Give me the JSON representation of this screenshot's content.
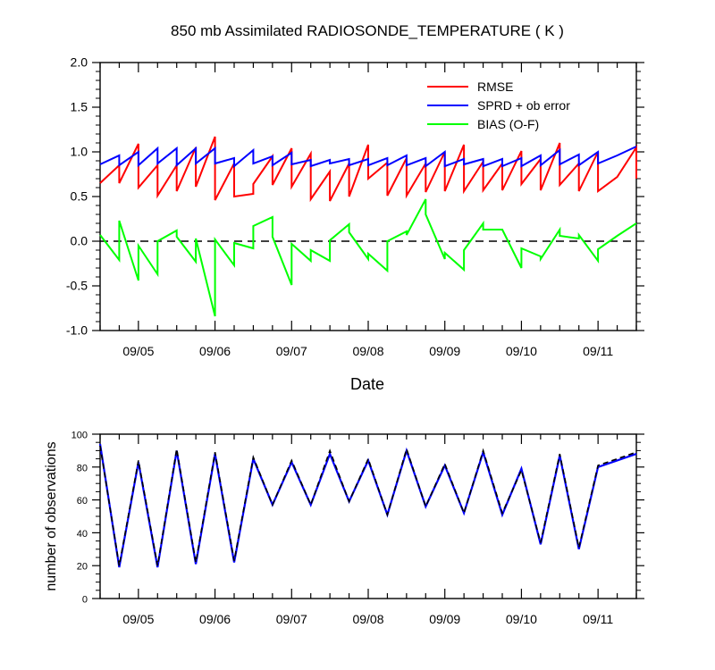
{
  "chart_data": [
    {
      "type": "line",
      "title": "850 mb Assimilated RADIOSONDE_TEMPERATURE ( K )",
      "xlabel": "Date",
      "ylabel": "",
      "xlim": [
        "09/04 12Z",
        "09/11 18Z"
      ],
      "ylim": [
        -1.0,
        2.0
      ],
      "y_ticks": [
        "-1.0",
        "-0.5",
        "0.0",
        "0.5",
        "1.0",
        "1.5",
        "2.0"
      ],
      "x_ticks": [
        "09/05",
        "09/06",
        "09/07",
        "09/08",
        "09/09",
        "09/10",
        "09/11"
      ],
      "zero_line": "dashed",
      "legend_position": "top-right",
      "series": [
        {
          "name": "RMSE",
          "color": "#ff0000",
          "points": [
            [
              0,
              0.65
            ],
            [
              1,
              0.85
            ],
            [
              1,
              0.65
            ],
            [
              2,
              1.09
            ],
            [
              2,
              0.6
            ],
            [
              3,
              0.85
            ],
            [
              3,
              0.51
            ],
            [
              4,
              0.85
            ],
            [
              4,
              0.56
            ],
            [
              5,
              1.05
            ],
            [
              5,
              0.61
            ],
            [
              6,
              1.17
            ],
            [
              6,
              0.46
            ],
            [
              7,
              0.87
            ],
            [
              7,
              0.5
            ],
            [
              8,
              0.53
            ],
            [
              8,
              0.64
            ],
            [
              9,
              0.95
            ],
            [
              9,
              0.63
            ],
            [
              10,
              1.04
            ],
            [
              10,
              0.61
            ],
            [
              11,
              0.98
            ],
            [
              11,
              0.47
            ],
            [
              12,
              0.78
            ],
            [
              12,
              0.45
            ],
            [
              13,
              0.87
            ],
            [
              13,
              0.5
            ],
            [
              14,
              1.08
            ],
            [
              14,
              0.7
            ],
            [
              15,
              0.88
            ],
            [
              15,
              0.51
            ],
            [
              16,
              0.93
            ],
            [
              16,
              0.51
            ],
            [
              17,
              0.87
            ],
            [
              17,
              0.55
            ],
            [
              18,
              1.0
            ],
            [
              18,
              0.56
            ],
            [
              19,
              1.08
            ],
            [
              19,
              0.56
            ],
            [
              20,
              0.89
            ],
            [
              20,
              0.57
            ],
            [
              21,
              0.87
            ],
            [
              21,
              0.57
            ],
            [
              22,
              1.01
            ],
            [
              22,
              0.64
            ],
            [
              23,
              0.92
            ],
            [
              23,
              0.57
            ],
            [
              24,
              1.1
            ],
            [
              24,
              0.63
            ],
            [
              25,
              0.87
            ],
            [
              25,
              0.56
            ],
            [
              26,
              1.0
            ],
            [
              26,
              0.56
            ],
            [
              27,
              0.72
            ],
            [
              28,
              1.05
            ],
            [
              28,
              0.7
            ]
          ]
        },
        {
          "name": "SPRD + ob error",
          "color": "#0000ff",
          "points": [
            [
              0,
              0.86
            ],
            [
              1,
              0.96
            ],
            [
              1,
              0.85
            ],
            [
              2,
              1.0
            ],
            [
              2,
              0.85
            ],
            [
              3,
              1.04
            ],
            [
              3,
              0.87
            ],
            [
              4,
              1.04
            ],
            [
              4,
              0.85
            ],
            [
              5,
              1.04
            ],
            [
              5,
              0.87
            ],
            [
              6,
              1.04
            ],
            [
              6,
              0.87
            ],
            [
              7,
              0.93
            ],
            [
              7,
              0.84
            ],
            [
              8,
              1.02
            ],
            [
              8,
              0.87
            ],
            [
              9,
              0.95
            ],
            [
              9,
              0.85
            ],
            [
              10,
              0.99
            ],
            [
              10,
              0.86
            ],
            [
              11,
              0.91
            ],
            [
              11,
              0.84
            ],
            [
              12,
              0.91
            ],
            [
              12,
              0.87
            ],
            [
              13,
              0.92
            ],
            [
              13,
              0.85
            ],
            [
              14,
              0.92
            ],
            [
              14,
              0.85
            ],
            [
              15,
              0.93
            ],
            [
              15,
              0.85
            ],
            [
              16,
              0.96
            ],
            [
              16,
              0.85
            ],
            [
              17,
              0.93
            ],
            [
              17,
              0.84
            ],
            [
              18,
              1.0
            ],
            [
              18,
              0.84
            ],
            [
              19,
              0.92
            ],
            [
              19,
              0.86
            ],
            [
              20,
              0.92
            ],
            [
              20,
              0.84
            ],
            [
              21,
              0.92
            ],
            [
              21,
              0.84
            ],
            [
              22,
              0.93
            ],
            [
              22,
              0.84
            ],
            [
              23,
              0.96
            ],
            [
              23,
              0.85
            ],
            [
              24,
              1.02
            ],
            [
              24,
              0.86
            ],
            [
              25,
              0.97
            ],
            [
              25,
              0.85
            ],
            [
              26,
              1.0
            ],
            [
              26,
              0.87
            ],
            [
              27,
              0.96
            ],
            [
              28,
              1.06
            ],
            [
              28,
              1.06
            ]
          ]
        },
        {
          "name": "BIAS (O-F)",
          "color": "#00ff00",
          "points": [
            [
              0,
              0.07
            ],
            [
              1,
              -0.21
            ],
            [
              1,
              0.23
            ],
            [
              2,
              -0.44
            ],
            [
              2,
              -0.05
            ],
            [
              3,
              -0.37
            ],
            [
              3,
              0.0
            ],
            [
              4,
              0.12
            ],
            [
              4,
              0.05
            ],
            [
              5,
              -0.23
            ],
            [
              5,
              0.03
            ],
            [
              6,
              -0.84
            ],
            [
              6,
              0.02
            ],
            [
              7,
              -0.27
            ],
            [
              7,
              -0.02
            ],
            [
              8,
              -0.08
            ],
            [
              8,
              0.17
            ],
            [
              9,
              0.27
            ],
            [
              9,
              0.05
            ],
            [
              10,
              -0.49
            ],
            [
              10,
              -0.03
            ],
            [
              11,
              -0.22
            ],
            [
              11,
              -0.1
            ],
            [
              12,
              -0.22
            ],
            [
              12,
              0.01
            ],
            [
              13,
              0.19
            ],
            [
              13,
              0.1
            ],
            [
              14,
              -0.2
            ],
            [
              14,
              -0.14
            ],
            [
              15,
              -0.33
            ],
            [
              15,
              0.0
            ],
            [
              16,
              0.11
            ],
            [
              16,
              0.07
            ],
            [
              17,
              0.47
            ],
            [
              17,
              0.3
            ],
            [
              18,
              -0.2
            ],
            [
              18,
              -0.13
            ],
            [
              19,
              -0.32
            ],
            [
              19,
              -0.1
            ],
            [
              20,
              0.2
            ],
            [
              20,
              0.13
            ],
            [
              21,
              0.13
            ],
            [
              21,
              0.13
            ],
            [
              22,
              -0.3
            ],
            [
              22,
              -0.08
            ],
            [
              23,
              -0.17
            ],
            [
              23,
              -0.2
            ],
            [
              24,
              0.13
            ],
            [
              24,
              0.06
            ],
            [
              25,
              0.03
            ],
            [
              25,
              0.07
            ],
            [
              26,
              -0.22
            ],
            [
              26,
              -0.09
            ],
            [
              27,
              0.06
            ],
            [
              28,
              0.2
            ],
            [
              28,
              0.2
            ]
          ]
        }
      ]
    },
    {
      "type": "line",
      "title": "",
      "xlabel": "",
      "ylabel": "number of observations",
      "xlim": [
        "09/04 12Z",
        "09/11 18Z"
      ],
      "ylim": [
        0,
        100
      ],
      "y_ticks": [
        "0",
        "20",
        "40",
        "60",
        "80",
        "100"
      ],
      "x_ticks": [
        "09/05",
        "09/06",
        "09/07",
        "09/08",
        "09/09",
        "09/10",
        "09/11"
      ],
      "series": [
        {
          "name": "",
          "color": "#0000ff",
          "style": "solid",
          "x": [
            0,
            1,
            2,
            3,
            4,
            5,
            6,
            7,
            8,
            9,
            10,
            11,
            12,
            13,
            14,
            15,
            16,
            17,
            18,
            19,
            20,
            21,
            22,
            23,
            24,
            25,
            26,
            27,
            28
          ],
          "values": [
            94,
            19,
            83,
            19,
            90,
            21,
            88,
            22,
            85,
            57,
            83,
            57,
            88,
            59,
            84,
            51,
            90,
            56,
            81,
            52,
            89,
            51,
            79,
            33,
            87,
            30,
            80,
            84,
            88
          ]
        },
        {
          "name": "",
          "color": "#000000",
          "style": "dashed",
          "x": [
            0,
            1,
            2,
            3,
            4,
            5,
            6,
            7,
            8,
            9,
            10,
            11,
            12,
            13,
            14,
            15,
            16,
            17,
            18,
            19,
            20,
            21,
            22,
            23,
            24,
            25,
            26,
            27,
            28
          ],
          "values": [
            93,
            20,
            84,
            20,
            91,
            22,
            89,
            23,
            86,
            57,
            84,
            57,
            90,
            59,
            85,
            51,
            91,
            56,
            82,
            52,
            90,
            52,
            78,
            34,
            88,
            31,
            81,
            85,
            89
          ]
        }
      ]
    }
  ]
}
